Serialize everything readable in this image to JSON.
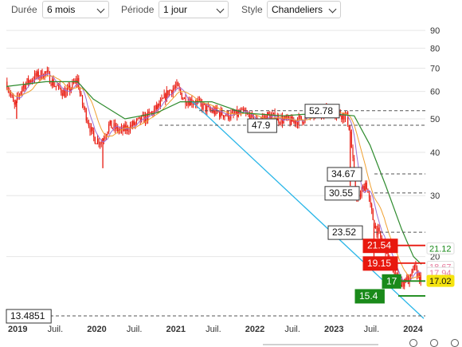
{
  "controls": {
    "duree_label": "Durée",
    "duree_value": "6 mois",
    "periode_label": "Période",
    "periode_value": "1 jour",
    "style_label": "Style",
    "style_value": "Chandeliers"
  },
  "chart_data": {
    "type": "candlestick",
    "y_scale": "log",
    "ylim": [
      13.2,
      96
    ],
    "y_ticks": [
      20,
      30,
      40,
      50,
      60,
      70,
      80,
      90
    ],
    "x_ticks": [
      "2019",
      "Juil.",
      "2020",
      "Juil.",
      "2021",
      "Juil.",
      "2022",
      "Juil.",
      "2023",
      "Juil.",
      "2024"
    ],
    "price_path": [
      {
        "t": 2019.0,
        "v": 64
      },
      {
        "t": 2019.05,
        "v": 59
      },
      {
        "t": 2019.1,
        "v": 54
      },
      {
        "t": 2019.2,
        "v": 62
      },
      {
        "t": 2019.35,
        "v": 66
      },
      {
        "t": 2019.5,
        "v": 68
      },
      {
        "t": 2019.6,
        "v": 63
      },
      {
        "t": 2019.75,
        "v": 59
      },
      {
        "t": 2019.9,
        "v": 65
      },
      {
        "t": 2019.95,
        "v": 56
      },
      {
        "t": 2020.0,
        "v": 52
      },
      {
        "t": 2020.1,
        "v": 44
      },
      {
        "t": 2020.2,
        "v": 43
      },
      {
        "t": 2020.3,
        "v": 48
      },
      {
        "t": 2020.45,
        "v": 46
      },
      {
        "t": 2020.6,
        "v": 48
      },
      {
        "t": 2020.8,
        "v": 51
      },
      {
        "t": 2020.95,
        "v": 55
      },
      {
        "t": 2021.05,
        "v": 60
      },
      {
        "t": 2021.15,
        "v": 62
      },
      {
        "t": 2021.25,
        "v": 57
      },
      {
        "t": 2021.4,
        "v": 56
      },
      {
        "t": 2021.55,
        "v": 53
      },
      {
        "t": 2021.7,
        "v": 52
      },
      {
        "t": 2021.85,
        "v": 51
      },
      {
        "t": 2022.0,
        "v": 52
      },
      {
        "t": 2022.15,
        "v": 49
      },
      {
        "t": 2022.3,
        "v": 51
      },
      {
        "t": 2022.45,
        "v": 50
      },
      {
        "t": 2022.6,
        "v": 49
      },
      {
        "t": 2022.75,
        "v": 50
      },
      {
        "t": 2022.9,
        "v": 52
      },
      {
        "t": 2023.0,
        "v": 53
      },
      {
        "t": 2023.15,
        "v": 52.5
      },
      {
        "t": 2023.3,
        "v": 51
      },
      {
        "t": 2023.35,
        "v": 46
      },
      {
        "t": 2023.38,
        "v": 38
      },
      {
        "t": 2023.42,
        "v": 31
      },
      {
        "t": 2023.45,
        "v": 29
      },
      {
        "t": 2023.5,
        "v": 31
      },
      {
        "t": 2023.55,
        "v": 33
      },
      {
        "t": 2023.6,
        "v": 28
      },
      {
        "t": 2023.65,
        "v": 25
      },
      {
        "t": 2023.7,
        "v": 23.5
      },
      {
        "t": 2023.75,
        "v": 22
      },
      {
        "t": 2023.8,
        "v": 21
      },
      {
        "t": 2023.85,
        "v": 19.5
      },
      {
        "t": 2023.9,
        "v": 18.2
      },
      {
        "t": 2023.95,
        "v": 17.2
      },
      {
        "t": 2024.0,
        "v": 16.6
      },
      {
        "t": 2024.05,
        "v": 17.4
      },
      {
        "t": 2024.1,
        "v": 16.9
      },
      {
        "t": 2024.15,
        "v": 18.6
      },
      {
        "t": 2024.2,
        "v": 17.8
      },
      {
        "t": 2024.25,
        "v": 17.02
      }
    ],
    "spikes": [
      {
        "t": 2019.13,
        "v": 50
      },
      {
        "t": 2020.22,
        "v": 36
      },
      {
        "t": 2023.35,
        "v": 32
      },
      {
        "t": 2023.65,
        "v": 20
      },
      {
        "t": 2024.0,
        "v": 16.4
      }
    ],
    "moving_average_long": [
      {
        "t": 2019.0,
        "v": 62
      },
      {
        "t": 2019.5,
        "v": 64
      },
      {
        "t": 2019.9,
        "v": 64
      },
      {
        "t": 2020.1,
        "v": 57
      },
      {
        "t": 2020.5,
        "v": 50
      },
      {
        "t": 2020.9,
        "v": 52
      },
      {
        "t": 2021.2,
        "v": 56
      },
      {
        "t": 2021.6,
        "v": 56
      },
      {
        "t": 2022.0,
        "v": 52
      },
      {
        "t": 2022.5,
        "v": 51
      },
      {
        "t": 2023.0,
        "v": 52
      },
      {
        "t": 2023.4,
        "v": 51
      },
      {
        "t": 2023.6,
        "v": 42
      },
      {
        "t": 2023.8,
        "v": 32
      },
      {
        "t": 2024.0,
        "v": 24
      },
      {
        "t": 2024.15,
        "v": 20
      },
      {
        "t": 2024.25,
        "v": 19
      }
    ],
    "trendline": [
      {
        "t": 2021.35,
        "v": 56
      },
      {
        "t": 2024.28,
        "v": 13.25
      }
    ],
    "levels": [
      {
        "value": "52.78",
        "color": "#555555",
        "box": "white"
      },
      {
        "value": "47.9",
        "color": "#555555",
        "box": "white"
      },
      {
        "value": "34.67",
        "color": "#555555",
        "box": "white"
      },
      {
        "value": "30.55",
        "color": "#555555",
        "box": "white"
      },
      {
        "value": "23.52",
        "color": "#555555",
        "box": "white"
      },
      {
        "value": "21.54",
        "color": "#e8180e",
        "box": "red"
      },
      {
        "value": "19.15",
        "color": "#e8180e",
        "box": "red"
      },
      {
        "value": "17",
        "color": "#1a8a1a",
        "box": "green"
      },
      {
        "value": "15.4",
        "color": "#1a8a1a",
        "box": "green"
      },
      {
        "value": "13.4851",
        "color": "#555555",
        "box": "white"
      }
    ],
    "right_labels": [
      {
        "value": "21.12",
        "color": "#1a8a1a",
        "bg": "#ffffff"
      },
      {
        "value": "18.67",
        "color": "#e77c9e",
        "bg": "#ffffff"
      },
      {
        "value": "17.94",
        "color": "#e77c9e",
        "bg": "#ffffff"
      },
      {
        "value": "17.02",
        "color": "#111111",
        "bg": "#f5e30e"
      }
    ],
    "colors": {
      "candle": "#e8180e",
      "ma_long": "#2e8b2e",
      "ma_mid": "#f0a030",
      "ma_short": "#9b6fd6",
      "trendline": "#29b6e8"
    }
  }
}
